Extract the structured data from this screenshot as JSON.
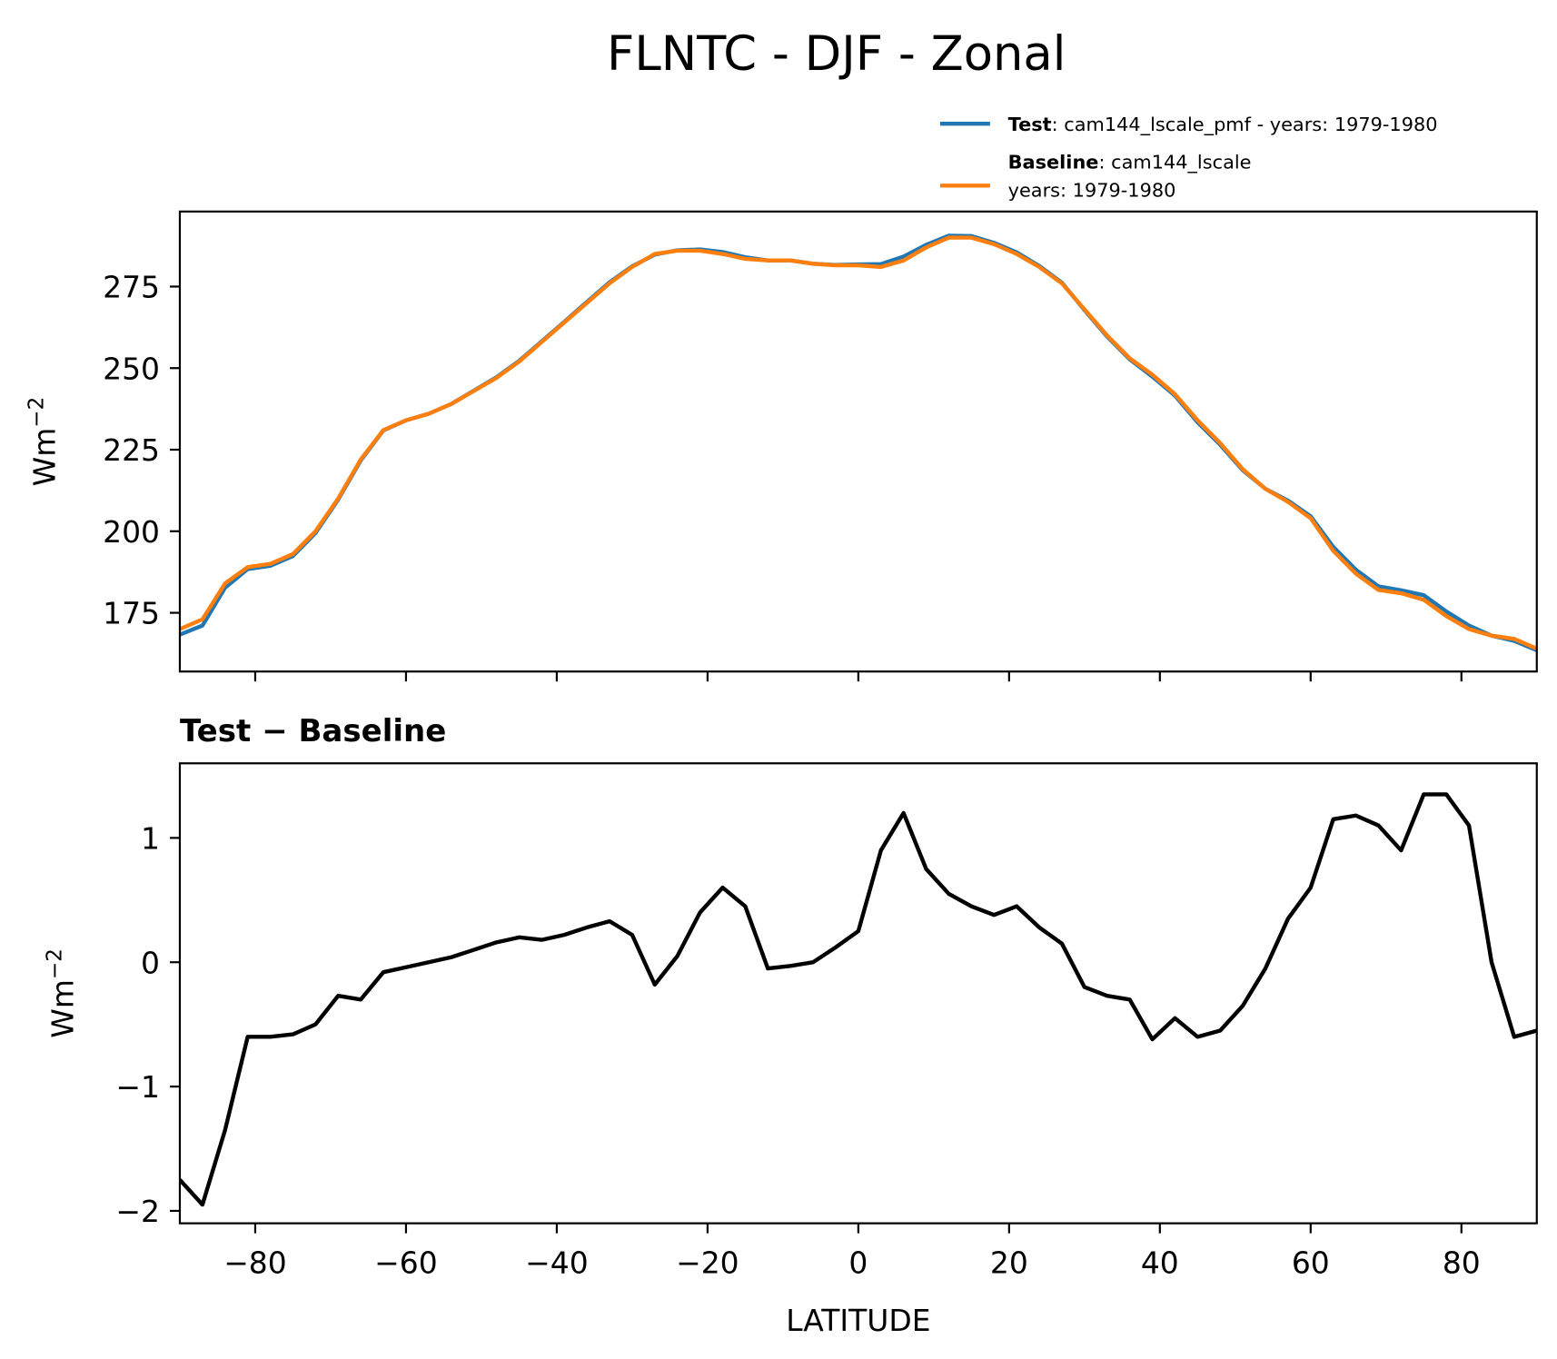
{
  "title": "FLNTC - DJF - Zonal",
  "chart_data": [
    {
      "type": "line",
      "xlim": [
        -90,
        90
      ],
      "ylim": [
        157,
        298
      ],
      "yticks": [
        175,
        200,
        225,
        250,
        275
      ],
      "ylabel": "Wm",
      "ylabel_sup": "−2",
      "x": [
        -90,
        -87,
        -84,
        -81,
        -78,
        -75,
        -72,
        -69,
        -66,
        -63,
        -60,
        -57,
        -54,
        -51,
        -48,
        -45,
        -42,
        -39,
        -36,
        -33,
        -30,
        -27,
        -24,
        -21,
        -18,
        -15,
        -12,
        -9,
        -6,
        -3,
        0,
        3,
        6,
        9,
        12,
        15,
        18,
        21,
        24,
        27,
        30,
        33,
        36,
        39,
        42,
        45,
        48,
        51,
        54,
        57,
        60,
        63,
        66,
        69,
        72,
        75,
        78,
        81,
        84,
        87,
        90
      ],
      "series": [
        {
          "name": "Test",
          "legend_lines": [
            ": cam144_lscale_pmf - years: 1979-1980"
          ],
          "color": "#1f77b4",
          "values": [
            168.3,
            171.1,
            182.7,
            188.4,
            189.4,
            192.4,
            199.5,
            209.7,
            221.7,
            230.9,
            234.0,
            236.0,
            239.0,
            243.1,
            247.2,
            252.2,
            258.2,
            264.2,
            270.3,
            276.3,
            281.2,
            284.8,
            286.1,
            286.4,
            285.6,
            284.0,
            283.0,
            283.0,
            282.0,
            281.6,
            281.8,
            281.9,
            284.2,
            287.8,
            290.6,
            290.5,
            288.4,
            285.5,
            281.3,
            276.2,
            267.8,
            259.7,
            252.7,
            247.4,
            241.6,
            233.4,
            226.5,
            218.7,
            213.0,
            209.4,
            204.6,
            195.2,
            188.2,
            183.1,
            181.9,
            180.4,
            175.4,
            171.1,
            168.0,
            166.4,
            163.5
          ]
        },
        {
          "name": "Baseline",
          "legend_lines": [
            ": cam144_lscale",
            "years: 1979-1980"
          ],
          "color": "#ff7f0e",
          "values": [
            170,
            173,
            184,
            189,
            190,
            193,
            200,
            210,
            222,
            231,
            234,
            236,
            239,
            243,
            247,
            252,
            258,
            264,
            270,
            276,
            281,
            285,
            286,
            286,
            285,
            283.5,
            283,
            283,
            282,
            281.5,
            281.5,
            281,
            283,
            287,
            290,
            290,
            288,
            285,
            281,
            276,
            268,
            260,
            253,
            248,
            242,
            234,
            227,
            219,
            213,
            209,
            204,
            194,
            187,
            182,
            181,
            179,
            174,
            170,
            168,
            167,
            164
          ]
        }
      ]
    },
    {
      "type": "line",
      "title": "Test − Baseline",
      "xlim": [
        -90,
        90
      ],
      "ylim": [
        -2.1,
        1.6
      ],
      "xticks": [
        {
          "value": -80,
          "label": "−80"
        },
        {
          "value": -60,
          "label": "−60"
        },
        {
          "value": -40,
          "label": "−40"
        },
        {
          "value": -20,
          "label": "−20"
        },
        0,
        20,
        40,
        60,
        80
      ],
      "yticks": [
        {
          "value": -2,
          "label": "−2"
        },
        {
          "value": -1,
          "label": "−1"
        },
        0,
        1
      ],
      "xlabel": "LATITUDE",
      "ylabel": "Wm",
      "ylabel_sup": "−2",
      "x": [
        -90,
        -87,
        -84,
        -81,
        -78,
        -75,
        -72,
        -69,
        -66,
        -63,
        -60,
        -57,
        -54,
        -51,
        -48,
        -45,
        -42,
        -39,
        -36,
        -33,
        -30,
        -27,
        -24,
        -21,
        -18,
        -15,
        -12,
        -9,
        -6,
        -3,
        0,
        3,
        6,
        9,
        12,
        15,
        18,
        21,
        24,
        27,
        30,
        33,
        36,
        39,
        42,
        45,
        48,
        51,
        54,
        57,
        60,
        63,
        66,
        69,
        72,
        75,
        78,
        81,
        84,
        87,
        90
      ],
      "series": [
        {
          "color": "#000000",
          "values": [
            -1.75,
            -1.95,
            -1.35,
            -0.6,
            -0.6,
            -0.58,
            -0.5,
            -0.27,
            -0.3,
            -0.08,
            -0.04,
            0.0,
            0.04,
            0.1,
            0.16,
            0.2,
            0.18,
            0.22,
            0.28,
            0.33,
            0.22,
            -0.18,
            0.05,
            0.4,
            0.6,
            0.45,
            -0.05,
            -0.03,
            0.0,
            0.12,
            0.25,
            0.9,
            1.2,
            0.75,
            0.55,
            0.45,
            0.38,
            0.45,
            0.28,
            0.15,
            -0.2,
            -0.27,
            -0.3,
            -0.62,
            -0.45,
            -0.6,
            -0.55,
            -0.35,
            -0.05,
            0.35,
            0.6,
            1.15,
            1.18,
            1.1,
            0.9,
            1.35,
            1.35,
            1.1,
            0.0,
            -0.6,
            -0.55
          ]
        }
      ]
    }
  ]
}
